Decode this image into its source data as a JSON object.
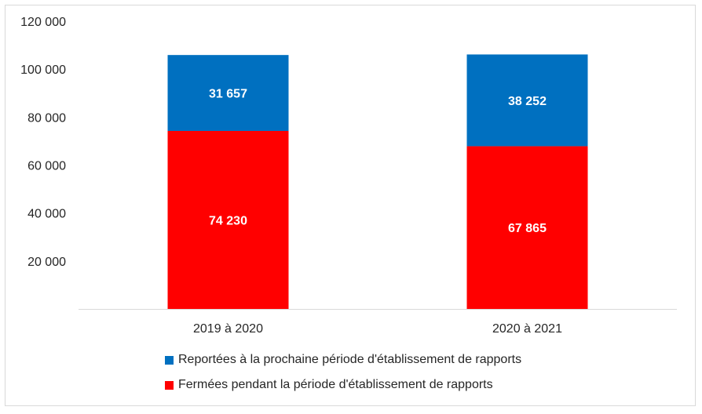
{
  "chart_data": {
    "type": "bar",
    "stacked": true,
    "categories": [
      "2019 à 2020",
      "2020 à 2021"
    ],
    "series": [
      {
        "name": "Fermées pendant la période d'établissement de rapports",
        "values": [
          74230,
          67865
        ],
        "labels": [
          "74 230",
          "67 865"
        ],
        "color": "#ff0000"
      },
      {
        "name": "Reportées à la prochaine période d'établissement de rapports",
        "values": [
          31657,
          38252
        ],
        "labels": [
          "31 657",
          "38 252"
        ],
        "color": "#0070c0"
      }
    ],
    "ylim": [
      0,
      120000
    ],
    "yticks": [
      20000,
      40000,
      60000,
      80000,
      100000,
      120000
    ],
    "ytick_labels": [
      "20 000",
      "40 000",
      "60 000",
      "80 000",
      "100 000",
      "120 000"
    ],
    "grid": false,
    "legend_position": "bottom"
  },
  "legend": {
    "items": [
      {
        "label": "Reportées à la prochaine période d'établissement de rapports",
        "color": "#0070c0"
      },
      {
        "label": "Fermées pendant la période d'établissement de rapports",
        "color": "#ff0000"
      }
    ]
  }
}
